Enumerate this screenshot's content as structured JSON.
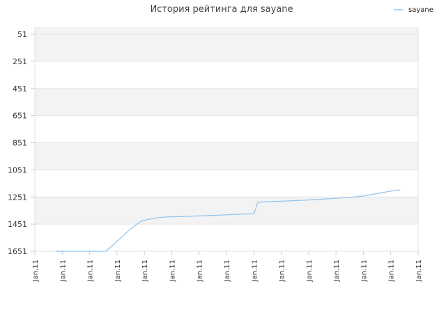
{
  "chart_data": {
    "type": "line",
    "title": "История рейтинга для sayane",
    "xlabel": "",
    "ylabel": "",
    "legend": {
      "position": "top-right"
    },
    "grid": true,
    "y_inverted": true,
    "ylim": [
      1651,
      51
    ],
    "y_ticks": [
      "51",
      "251",
      "451",
      "651",
      "851",
      "1051",
      "1251",
      "1451",
      "1651"
    ],
    "x_ticks": [
      "Jan.11",
      "Jan.11",
      "Jan.11",
      "Jan.11",
      "Jan.11",
      "Jan.11",
      "Jan.11",
      "Jan.11",
      "Jan.11",
      "Jan.11",
      "Jan.11",
      "Jan.11",
      "Jan.11",
      "Jan.11",
      "Jan.11"
    ],
    "xlim": [
      0,
      14
    ],
    "series": [
      {
        "name": "sayane",
        "color": "#8fc3ef",
        "points": [
          [
            0.75,
            1651
          ],
          [
            1.5,
            1651
          ],
          [
            2.5,
            1651
          ],
          [
            2.6,
            1651
          ],
          [
            3.1,
            1560
          ],
          [
            3.5,
            1485
          ],
          [
            3.9,
            1427
          ],
          [
            4.1,
            1418
          ],
          [
            4.5,
            1403
          ],
          [
            4.8,
            1398
          ],
          [
            5.3,
            1396
          ],
          [
            5.8,
            1392
          ],
          [
            6.3,
            1388
          ],
          [
            6.8,
            1384
          ],
          [
            7.3,
            1380
          ],
          [
            7.8,
            1376
          ],
          [
            8.0,
            1374
          ],
          [
            8.15,
            1289
          ],
          [
            8.5,
            1286
          ],
          [
            9.0,
            1282
          ],
          [
            9.5,
            1278
          ],
          [
            10.0,
            1273
          ],
          [
            10.5,
            1267
          ],
          [
            11.0,
            1261
          ],
          [
            11.5,
            1254
          ],
          [
            12.0,
            1244
          ],
          [
            12.5,
            1226
          ],
          [
            13.0,
            1208
          ],
          [
            13.35,
            1197
          ]
        ]
      }
    ]
  }
}
